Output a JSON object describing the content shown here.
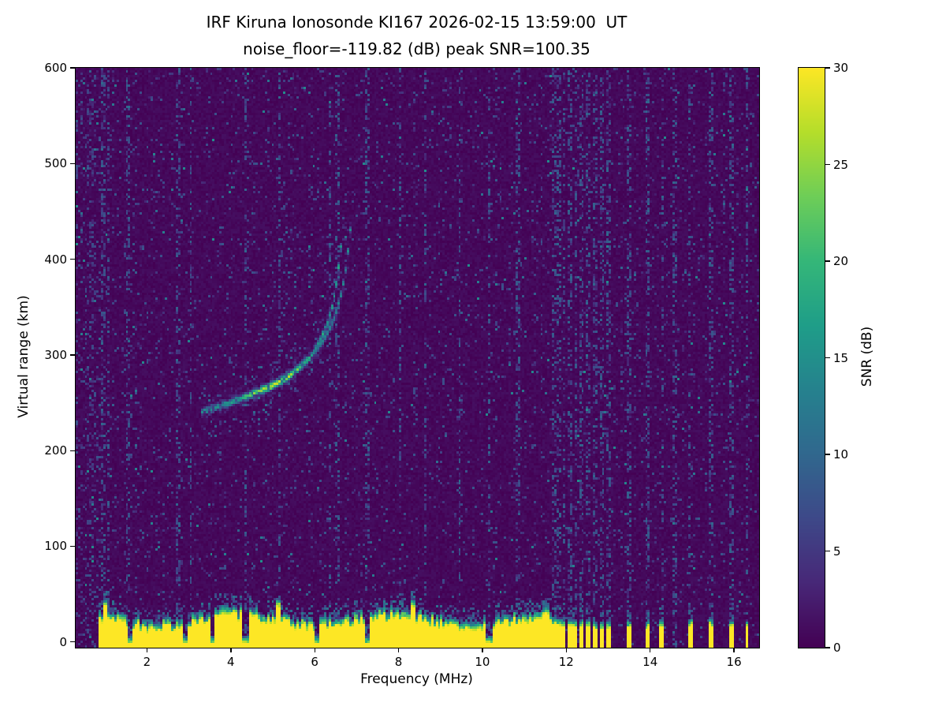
{
  "chart_data": {
    "type": "heatmap",
    "title": "IRF Kiruna Ionosonde KI167 2026-02-15 13:59:00  UT",
    "subtitle": "noise_floor=-119.82 (dB) peak SNR=100.35",
    "station": "IRF Kiruna Ionosonde KI167",
    "timestamp_ut": "2026-02-15 13:59:00",
    "noise_floor_db": -119.82,
    "peak_snr_db": 100.35,
    "xlabel": "Frequency (MHz)",
    "ylabel": "Virtual range (km)",
    "colorbar_label": "SNR (dB)",
    "colormap": "viridis",
    "viridis_stops": [
      "#440154",
      "#482878",
      "#3e4989",
      "#31688e",
      "#26828e",
      "#1f9e89",
      "#35b779",
      "#6ece58",
      "#b5de2b",
      "#fde725"
    ],
    "xlim": [
      0.3,
      16.6
    ],
    "ylim": [
      -6,
      600
    ],
    "clim": [
      0,
      30
    ],
    "xticks": [
      2,
      4,
      6,
      8,
      10,
      12,
      14,
      16
    ],
    "yticks": [
      0,
      100,
      200,
      300,
      400,
      500,
      600
    ],
    "colorbar_ticks": [
      0,
      5,
      10,
      15,
      20,
      25,
      30
    ],
    "f_layer_trace": {
      "points_mhz_km": [
        [
          3.3,
          240
        ],
        [
          3.7,
          246
        ],
        [
          4.1,
          252
        ],
        [
          4.5,
          259
        ],
        [
          4.9,
          266
        ],
        [
          5.3,
          275
        ],
        [
          5.6,
          285
        ],
        [
          5.9,
          298
        ],
        [
          6.1,
          312
        ],
        [
          6.3,
          332
        ],
        [
          6.45,
          356
        ],
        [
          6.55,
          382
        ],
        [
          6.62,
          408
        ],
        [
          6.67,
          432
        ]
      ],
      "second_echo_offset_mhz": 0.2,
      "peak_brightness_mhz": 5.05
    },
    "ground_clutter": {
      "top_km_nominal": 30,
      "continuous_range_mhz": [
        0.85,
        11.65
      ],
      "sparse_bars_mhz": [
        11.7,
        11.82,
        11.95,
        12.08,
        12.22,
        12.37,
        12.52,
        12.68,
        12.85,
        13.02,
        13.5,
        13.95,
        14.28,
        14.95,
        15.45,
        15.95,
        16.3
      ],
      "notches_mhz": [
        1.6,
        2.9,
        3.55,
        4.35,
        6.05,
        7.25,
        10.15
      ],
      "spikes_mhz": [
        1.0,
        5.15,
        8.35
      ]
    },
    "rfi_stripes_mhz": [
      0.95,
      1.1,
      1.55,
      2.75,
      3.05,
      4.35,
      5.15,
      6.35,
      6.55,
      7.25,
      8.05,
      8.65,
      9.45,
      10.15,
      10.85,
      11.7,
      11.82,
      11.95,
      12.08,
      12.22,
      12.37,
      12.52,
      12.68,
      12.85,
      13.02,
      13.5,
      13.95,
      14.28,
      14.6,
      14.95,
      15.45,
      15.95,
      16.3
    ],
    "noise_seed": 20260215
  }
}
